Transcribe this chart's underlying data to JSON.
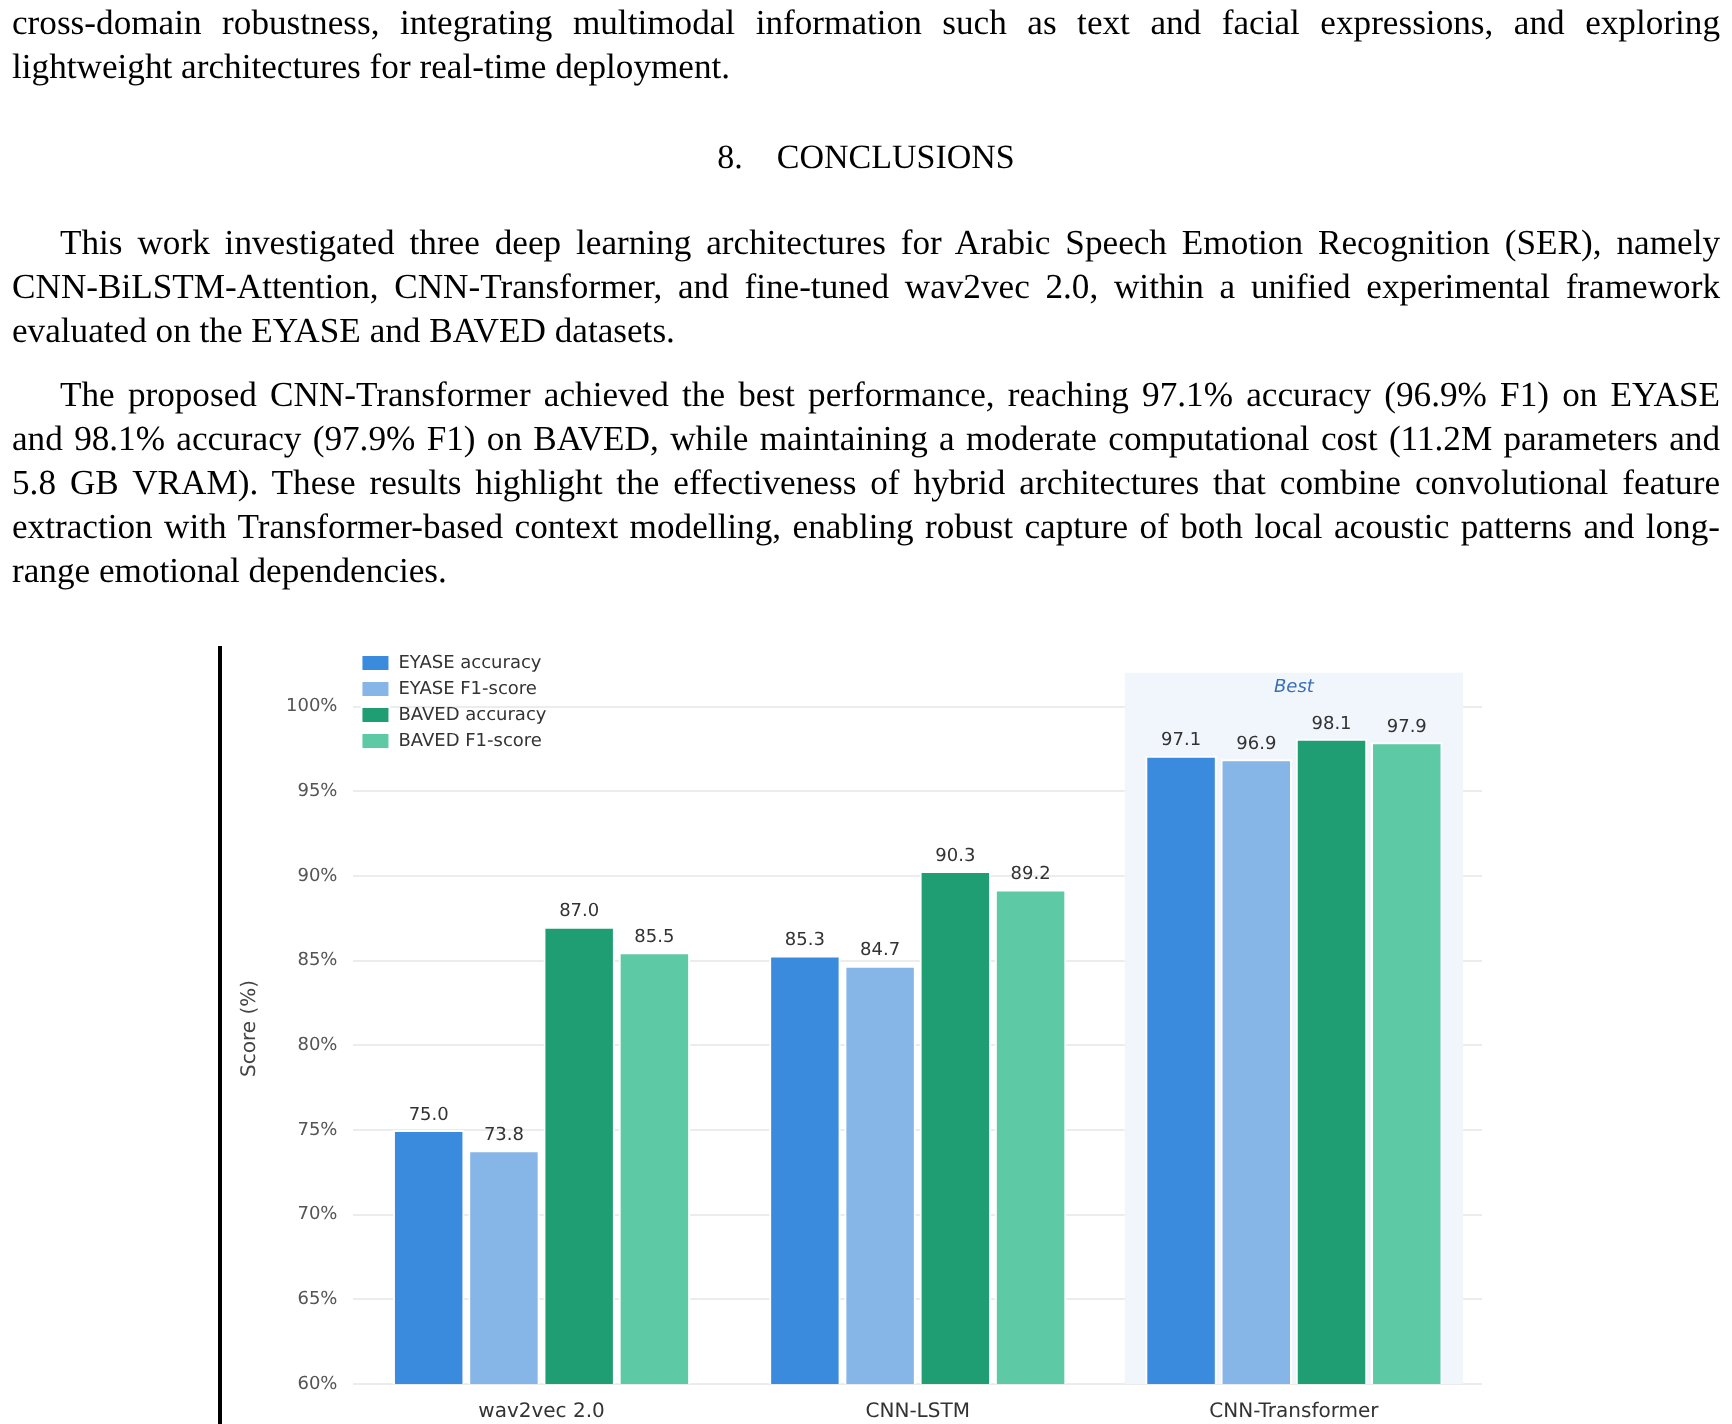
{
  "chart_data": {
    "type": "bar",
    "ylabel": "Score (%)",
    "annotations": [
      "cross-domain robustness, integrating multimodal information such as text and facial expressions, and exploring lightweight architectures for real-time deployment.",
      "8. CONCLUSIONS",
      "This work investigated three deep learning architectures for Arabic Speech Emotion Recognition (SER), namely CNN-BiLSTM-Attention, CNN-Transformer, and fine-tuned wav2vec 2.0, within a unified experimental framework evaluated on the EYASE and BAVED datasets.",
      "The proposed CNN-Transformer achieved the best performance, reaching 97.1% accuracy (96.9% F1) on EYASE and 98.1% accuracy (97.9% F1) on BAVED, while maintaining a moderate computational cost (11.2M parameters and 5.8 GB VRAM). These results highlight the effectiveness of hybrid architectures that combine convolutional feature extraction with Transformer-based context modelling, enabling robust capture of both local acoustic patterns and long-range emotional dependencies."
    ],
    "categories": [
      "wav2vec 2.0",
      "CNN-LSTM",
      "CNN-Transformer"
    ],
    "series": [
      {
        "name": "EYASE accuracy",
        "color": "#3a8ade",
        "values": [
          75.0,
          85.3,
          97.1
        ],
        "value_labels": [
          "75.0",
          "85.3",
          "97.1"
        ]
      },
      {
        "name": "EYASE F1-score",
        "color": "#86b6e8",
        "values": [
          73.8,
          84.7,
          96.9
        ],
        "value_labels": [
          "73.8",
          "84.7",
          "96.9"
        ]
      },
      {
        "name": "BAVED accuracy",
        "color": "#1f9e74",
        "values": [
          87.0,
          90.3,
          98.1
        ],
        "value_labels": [
          "87.0",
          "90.3",
          "98.1"
        ]
      },
      {
        "name": "BAVED F1-score",
        "color": "#5ecaa5",
        "values": [
          85.5,
          89.2,
          97.9
        ],
        "value_labels": [
          "85.5",
          "89.2",
          "97.9"
        ]
      }
    ],
    "ylim": [
      60,
      102
    ],
    "yticks": [
      {
        "value": 60,
        "label": "60%"
      },
      {
        "value": 65,
        "label": "65%"
      },
      {
        "value": 70,
        "label": "70%"
      },
      {
        "value": 75,
        "label": "75%"
      },
      {
        "value": 80,
        "label": "80%"
      },
      {
        "value": 85,
        "label": "85%"
      },
      {
        "value": 90,
        "label": "90%"
      },
      {
        "value": 95,
        "label": "95%"
      },
      {
        "value": 100,
        "label": "100%"
      }
    ],
    "bands": [
      {
        "axis": "x",
        "from": "CNN-Transformer",
        "to": "CNN-Transformer",
        "label": "Best",
        "color": "#f1f6fd"
      }
    ],
    "grid": "y",
    "legend": "top left"
  }
}
